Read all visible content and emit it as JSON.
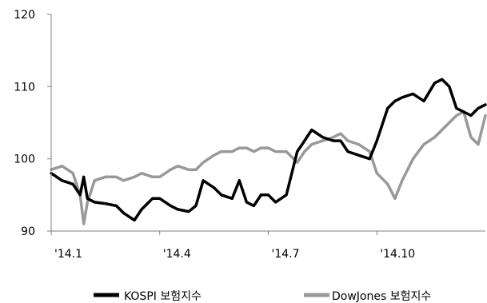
{
  "chart_data": {
    "type": "line",
    "title": "",
    "xlabel": "",
    "ylabel": "",
    "ylim": [
      90,
      120
    ],
    "yticks": [
      90,
      100,
      110,
      120
    ],
    "x_range": [
      0,
      12
    ],
    "x_ticks": [
      {
        "label": "'14.1",
        "x": 0
      },
      {
        "label": "'14.4",
        "x": 3
      },
      {
        "label": "'14.7",
        "x": 6
      },
      {
        "label": "'14.10",
        "x": 9
      }
    ],
    "grid": false,
    "legend_position": "bottom",
    "series": [
      {
        "name": "KOSPI 보험지수",
        "color": "#000000",
        "x": [
          0,
          0.3,
          0.6,
          0.8,
          0.9,
          1.0,
          1.2,
          1.5,
          1.8,
          2.0,
          2.3,
          2.5,
          2.8,
          3.0,
          3.3,
          3.5,
          3.8,
          4.0,
          4.2,
          4.5,
          4.7,
          5.0,
          5.2,
          5.4,
          5.6,
          5.8,
          6.0,
          6.2,
          6.5,
          6.8,
          7.0,
          7.2,
          7.5,
          7.8,
          8.0,
          8.2,
          8.5,
          8.8,
          9.0,
          9.3,
          9.5,
          9.7,
          10.0,
          10.3,
          10.6,
          10.8,
          11.0,
          11.2,
          11.4,
          11.6,
          11.8,
          12.0
        ],
        "values": [
          98,
          97,
          96.5,
          95,
          97.5,
          94.5,
          94,
          93.8,
          93.5,
          92.5,
          91.5,
          93,
          94.5,
          94.5,
          93.5,
          93,
          92.7,
          93.5,
          97,
          96,
          95,
          94.5,
          97,
          94,
          93.5,
          95,
          95,
          94,
          95,
          101,
          102.5,
          104,
          103,
          102.5,
          102.5,
          101,
          100.5,
          100,
          102.5,
          107,
          108,
          108.5,
          109,
          108,
          110.5,
          111,
          110,
          107,
          106.5,
          106,
          107,
          107.5
        ]
      },
      {
        "name": "DowJones 보험지수",
        "color": "#999999",
        "x": [
          0,
          0.3,
          0.6,
          0.8,
          0.9,
          1.0,
          1.2,
          1.5,
          1.8,
          2.0,
          2.3,
          2.5,
          2.8,
          3.0,
          3.3,
          3.5,
          3.8,
          4.0,
          4.2,
          4.5,
          4.7,
          5.0,
          5.2,
          5.4,
          5.6,
          5.8,
          6.0,
          6.2,
          6.5,
          6.8,
          7.0,
          7.2,
          7.5,
          7.8,
          8.0,
          8.2,
          8.5,
          8.8,
          9.0,
          9.3,
          9.5,
          9.7,
          10.0,
          10.3,
          10.6,
          10.8,
          11.0,
          11.2,
          11.4,
          11.6,
          11.8,
          12.0
        ],
        "values": [
          98.5,
          99,
          98,
          95,
          91,
          94,
          97,
          97.5,
          97.5,
          97,
          97.5,
          98,
          97.5,
          97.5,
          98.5,
          99,
          98.5,
          98.5,
          99.5,
          100.5,
          101,
          101,
          101.5,
          101.5,
          101,
          101.5,
          101.5,
          101,
          101,
          99.5,
          101,
          102,
          102.5,
          103,
          103.5,
          102.5,
          102,
          101,
          98,
          96.5,
          94.5,
          97,
          100,
          102,
          103,
          104,
          105,
          106,
          106.5,
          103,
          102,
          106
        ]
      }
    ]
  }
}
